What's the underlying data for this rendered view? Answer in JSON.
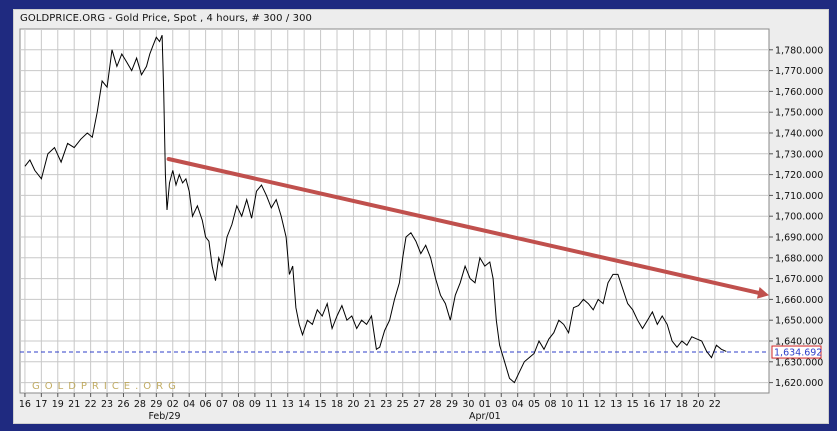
{
  "chart_title": "GOLDPRICE.ORG - Gold Price, Spot , 4 hours, # 300 / 300",
  "watermark": "GOLDPRICE.ORG",
  "colors": {
    "frame": "#1f2a80",
    "panel": "#ededed",
    "plot": "#ffffff",
    "grid": "#c8c8c8",
    "price_line": "#000000",
    "trendline": "#c0504d",
    "spot_line": "#2f3fc9",
    "spot_label": "#d62828"
  },
  "chart_data": {
    "type": "line",
    "ylim": [
      1615,
      1790
    ],
    "grid": true,
    "y_ticks": [
      "1,620.000",
      "1,630.000",
      "1,640.000",
      "1,650.000",
      "1,660.000",
      "1,670.000",
      "1,680.000",
      "1,690.000",
      "1,700.000",
      "1,710.000",
      "1,720.000",
      "1,730.000",
      "1,740.000",
      "1,750.000",
      "1,760.000",
      "1,770.000",
      "1,780.000"
    ],
    "y_tick_values": [
      1620,
      1630,
      1640,
      1650,
      1660,
      1670,
      1680,
      1690,
      1700,
      1710,
      1720,
      1730,
      1740,
      1750,
      1760,
      1770,
      1780
    ],
    "x_tick_labels": [
      "16",
      "17",
      "19",
      "21",
      "22",
      "23",
      "26",
      "28",
      "29",
      "02",
      "04",
      "06",
      "07",
      "08",
      "09",
      "11",
      "13",
      "14",
      "15",
      "18",
      "20",
      "21",
      "23",
      "25",
      "27",
      "28",
      "29",
      "30",
      "01",
      "03",
      "04",
      "05",
      "08",
      "10",
      "11",
      "12",
      "13",
      "15",
      "16",
      "17",
      "18",
      "20",
      "22"
    ],
    "x_tick_positions": [
      0,
      1,
      2,
      3,
      4,
      5,
      6,
      7,
      8,
      9,
      10,
      11,
      12,
      13,
      14,
      15,
      16,
      17,
      18,
      19,
      20,
      21,
      22,
      23,
      24,
      25,
      26,
      27,
      28,
      29,
      30,
      31,
      32,
      33,
      34,
      35,
      36,
      37,
      38,
      39,
      40,
      41,
      42
    ],
    "x_secondary_labels": [
      {
        "label": "Feb/29",
        "at": 8.5
      },
      {
        "label": "Apr/01",
        "at": 28
      }
    ],
    "series": [
      {
        "points": [
          [
            0,
            1724
          ],
          [
            0.3,
            1727
          ],
          [
            0.6,
            1722
          ],
          [
            1,
            1718
          ],
          [
            1.4,
            1730
          ],
          [
            1.8,
            1733
          ],
          [
            2.2,
            1726
          ],
          [
            2.6,
            1735
          ],
          [
            3,
            1733
          ],
          [
            3.4,
            1737
          ],
          [
            3.8,
            1740
          ],
          [
            4.1,
            1738
          ],
          [
            4.4,
            1750
          ],
          [
            4.7,
            1765
          ],
          [
            5,
            1762
          ],
          [
            5.3,
            1780
          ],
          [
            5.6,
            1772
          ],
          [
            5.9,
            1778
          ],
          [
            6.2,
            1774
          ],
          [
            6.5,
            1770
          ],
          [
            6.8,
            1776
          ],
          [
            7.1,
            1768
          ],
          [
            7.4,
            1772
          ],
          [
            7.6,
            1778
          ],
          [
            7.8,
            1782
          ],
          [
            8.0,
            1786
          ],
          [
            8.2,
            1784
          ],
          [
            8.35,
            1787
          ],
          [
            8.45,
            1760
          ],
          [
            8.55,
            1720
          ],
          [
            8.65,
            1703
          ],
          [
            8.8,
            1716
          ],
          [
            9.0,
            1722
          ],
          [
            9.2,
            1715
          ],
          [
            9.4,
            1720
          ],
          [
            9.6,
            1716
          ],
          [
            9.8,
            1718
          ],
          [
            10.0,
            1712
          ],
          [
            10.2,
            1700
          ],
          [
            10.5,
            1705
          ],
          [
            10.8,
            1698
          ],
          [
            11.0,
            1690
          ],
          [
            11.2,
            1688
          ],
          [
            11.4,
            1676
          ],
          [
            11.6,
            1669
          ],
          [
            11.8,
            1680
          ],
          [
            12.0,
            1676
          ],
          [
            12.3,
            1690
          ],
          [
            12.6,
            1696
          ],
          [
            12.9,
            1705
          ],
          [
            13.2,
            1700
          ],
          [
            13.5,
            1708
          ],
          [
            13.8,
            1699
          ],
          [
            14.1,
            1712
          ],
          [
            14.4,
            1715
          ],
          [
            14.7,
            1710
          ],
          [
            15.0,
            1704
          ],
          [
            15.3,
            1708
          ],
          [
            15.6,
            1700
          ],
          [
            15.9,
            1690
          ],
          [
            16.1,
            1672
          ],
          [
            16.3,
            1676
          ],
          [
            16.5,
            1656
          ],
          [
            16.7,
            1648
          ],
          [
            16.9,
            1643
          ],
          [
            17.2,
            1650
          ],
          [
            17.5,
            1648
          ],
          [
            17.8,
            1655
          ],
          [
            18.1,
            1652
          ],
          [
            18.4,
            1658
          ],
          [
            18.7,
            1646
          ],
          [
            19.0,
            1652
          ],
          [
            19.3,
            1657
          ],
          [
            19.6,
            1650
          ],
          [
            19.9,
            1652
          ],
          [
            20.2,
            1646
          ],
          [
            20.5,
            1650
          ],
          [
            20.8,
            1648
          ],
          [
            21.1,
            1652
          ],
          [
            21.4,
            1636
          ],
          [
            21.6,
            1637
          ],
          [
            21.9,
            1645
          ],
          [
            22.2,
            1650
          ],
          [
            22.5,
            1660
          ],
          [
            22.8,
            1668
          ],
          [
            23.0,
            1680
          ],
          [
            23.2,
            1690
          ],
          [
            23.5,
            1692
          ],
          [
            23.8,
            1688
          ],
          [
            24.1,
            1682
          ],
          [
            24.4,
            1686
          ],
          [
            24.7,
            1680
          ],
          [
            25.0,
            1670
          ],
          [
            25.3,
            1662
          ],
          [
            25.6,
            1658
          ],
          [
            25.9,
            1650
          ],
          [
            26.2,
            1662
          ],
          [
            26.5,
            1668
          ],
          [
            26.8,
            1676
          ],
          [
            27.1,
            1670
          ],
          [
            27.4,
            1668
          ],
          [
            27.7,
            1680
          ],
          [
            28.0,
            1676
          ],
          [
            28.3,
            1678
          ],
          [
            28.5,
            1670
          ],
          [
            28.7,
            1650
          ],
          [
            28.9,
            1638
          ],
          [
            29.2,
            1630
          ],
          [
            29.5,
            1622
          ],
          [
            29.8,
            1620
          ],
          [
            30.1,
            1625
          ],
          [
            30.4,
            1630
          ],
          [
            30.7,
            1632
          ],
          [
            31.0,
            1634
          ],
          [
            31.3,
            1640
          ],
          [
            31.6,
            1636
          ],
          [
            31.9,
            1641
          ],
          [
            32.2,
            1644
          ],
          [
            32.5,
            1650
          ],
          [
            32.8,
            1648
          ],
          [
            33.1,
            1644
          ],
          [
            33.4,
            1656
          ],
          [
            33.7,
            1657
          ],
          [
            34.0,
            1660
          ],
          [
            34.3,
            1658
          ],
          [
            34.6,
            1655
          ],
          [
            34.9,
            1660
          ],
          [
            35.2,
            1658
          ],
          [
            35.5,
            1668
          ],
          [
            35.8,
            1672
          ],
          [
            36.1,
            1672
          ],
          [
            36.4,
            1665
          ],
          [
            36.7,
            1658
          ],
          [
            37.0,
            1655
          ],
          [
            37.3,
            1650
          ],
          [
            37.6,
            1646
          ],
          [
            37.9,
            1650
          ],
          [
            38.2,
            1654
          ],
          [
            38.5,
            1648
          ],
          [
            38.8,
            1652
          ],
          [
            39.1,
            1648
          ],
          [
            39.4,
            1640
          ],
          [
            39.7,
            1637
          ],
          [
            40.0,
            1640
          ],
          [
            40.3,
            1638
          ],
          [
            40.6,
            1642
          ],
          [
            40.9,
            1641
          ],
          [
            41.2,
            1640
          ],
          [
            41.5,
            1635
          ],
          [
            41.8,
            1632
          ],
          [
            42.1,
            1638
          ],
          [
            42.4,
            1636
          ],
          [
            42.7,
            1635
          ]
        ]
      }
    ],
    "trendline": {
      "x": [
        8.75,
        45.3
      ],
      "y": [
        1727.5,
        1662
      ]
    },
    "spot_price": {
      "value": 1634.692,
      "label": "1,634.692"
    }
  }
}
